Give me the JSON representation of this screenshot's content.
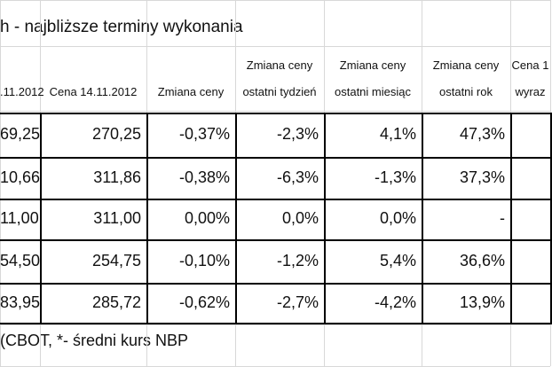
{
  "title": "h - najbliższe terminy wykonania",
  "table": {
    "header": [
      [
        ".11.2012"
      ],
      [
        "Cena 14.11.2012"
      ],
      [
        "Zmiana ceny"
      ],
      [
        "Zmiana ceny",
        "ostatni tydzień"
      ],
      [
        "Zmiana ceny",
        "ostatni miesiąc"
      ],
      [
        "Zmiana ceny",
        "ostatni rok"
      ],
      [
        "Cena 1",
        "wyraz"
      ]
    ],
    "rows": [
      [
        "69,25",
        "270,25",
        "-0,37%",
        "-2,3%",
        "4,1%",
        "47,3%"
      ],
      [
        "10,66",
        "311,86",
        "-0,38%",
        "-6,3%",
        "-1,3%",
        "37,3%"
      ],
      [
        "11,00",
        "311,00",
        "0,00%",
        "0,0%",
        "0,0%",
        "-"
      ],
      [
        "54,50",
        "254,75",
        "-0,10%",
        "-1,2%",
        "5,4%",
        "36,6%"
      ],
      [
        "83,95",
        "285,72",
        "-0,62%",
        "-2,7%",
        "-4,2%",
        "13,9%"
      ]
    ]
  },
  "footer": "(CBOT, *- średni kurs NBP"
}
